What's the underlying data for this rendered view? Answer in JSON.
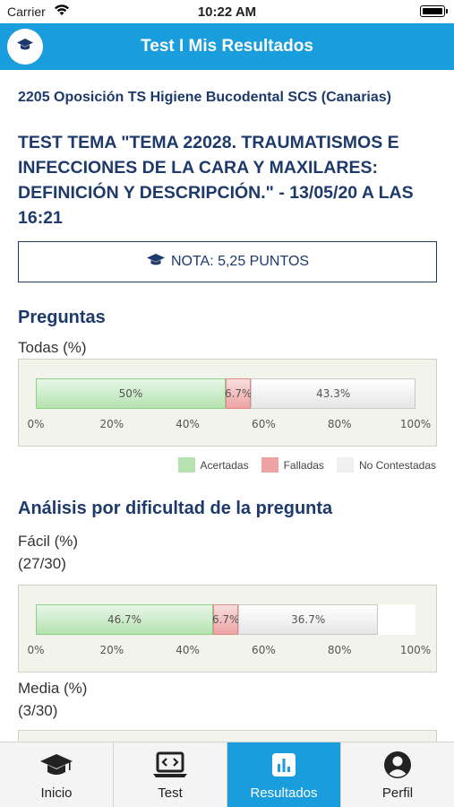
{
  "status_bar": {
    "carrier": "Carrier",
    "time": "10:22 AM"
  },
  "nav": {
    "title": "Test I Mis Resultados",
    "logo_icon": "graduation-cap-icon"
  },
  "course": "2205 Oposición TS Higiene Bucodental SCS (Canarias)",
  "test_title": "TEST TEMA \"TEMA 22028. TRAUMATISMOS E INFECCIONES DE LA CARA Y MAXILARES: DEFINICIÓN Y DESCRIPCIÓN.\" - 13/05/20 A LAS 16:21",
  "nota": "NOTA: 5,25 PUNTOS",
  "preguntas": {
    "title": "Preguntas",
    "label": "Todas (%)"
  },
  "analisis": {
    "title": "Análisis por dificultad de la pregunta",
    "facil_label": "Fácil (%)",
    "facil_count": "(27/30)",
    "media_label": "Media (%)",
    "media_count": "(3/30)"
  },
  "legend": [
    "Acertadas",
    "Falladas",
    "No Contestadas"
  ],
  "colors": {
    "accent": "#1a9ddc",
    "navy": "#1e3a6b",
    "acertadas": "#b5e2b0",
    "falladas": "#eea3a3",
    "no_contestadas": "#eeeeee"
  },
  "chart_data": [
    {
      "type": "bar",
      "orientation": "horizontal-stacked",
      "categories": [
        "Todas"
      ],
      "series": [
        {
          "name": "Acertadas",
          "values": [
            50
          ],
          "label": "50%"
        },
        {
          "name": "Falladas",
          "values": [
            6.7
          ],
          "label": "6.7%"
        },
        {
          "name": "No Contestadas",
          "values": [
            43.3
          ],
          "label": "43.3%"
        }
      ],
      "xlim": [
        0,
        100
      ],
      "ticks": [
        "0%",
        "20%",
        "40%",
        "60%",
        "80%",
        "100%"
      ]
    },
    {
      "type": "bar",
      "orientation": "horizontal-stacked",
      "categories": [
        "Fácil"
      ],
      "series": [
        {
          "name": "Acertadas",
          "values": [
            46.7
          ],
          "label": "46.7%"
        },
        {
          "name": "Falladas",
          "values": [
            6.7
          ],
          "label": "6.7%"
        },
        {
          "name": "No Contestadas",
          "values": [
            36.7
          ],
          "label": "36.7%"
        }
      ],
      "xlim": [
        0,
        100
      ],
      "ticks": [
        "0%",
        "20%",
        "40%",
        "60%",
        "80%",
        "100%"
      ]
    }
  ],
  "tabs": [
    {
      "label": "Inicio",
      "icon": "graduation-cap-icon",
      "active": false
    },
    {
      "label": "Test",
      "icon": "laptop-code-icon",
      "active": false
    },
    {
      "label": "Resultados",
      "icon": "bar-chart-icon",
      "active": true
    },
    {
      "label": "Perfil",
      "icon": "user-circle-icon",
      "active": false
    }
  ]
}
